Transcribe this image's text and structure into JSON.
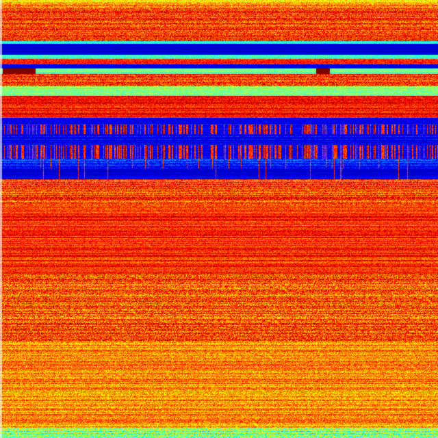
{
  "colormap": {
    "name": "jet",
    "stops": [
      "#00007f",
      "#0000ff",
      "#00ffff",
      "#7fff7f",
      "#ffff00",
      "#ff7f00",
      "#ff0000",
      "#7f0000"
    ]
  }
}
